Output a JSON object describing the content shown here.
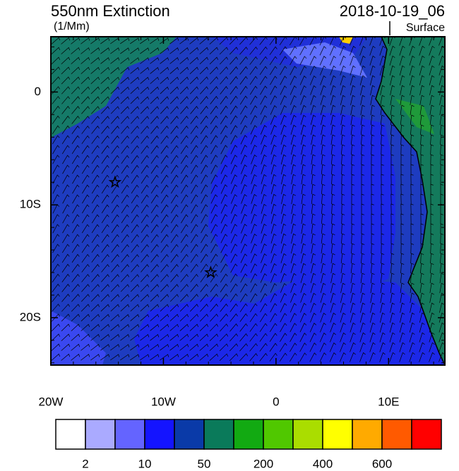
{
  "chart_data": {
    "type": "map",
    "title": "550nm Extinction",
    "units": "(1/Mm)",
    "date": "2018-10-19_06",
    "level": "Surface",
    "xlim": [
      -20,
      15
    ],
    "ylim": [
      -24.2,
      4.9
    ],
    "xticks": [
      {
        "value": -20,
        "label": "20W"
      },
      {
        "value": -10,
        "label": "10W"
      },
      0,
      {
        "value": 10,
        "label": "10E"
      }
    ],
    "yticks": [
      {
        "value": -20,
        "label": "20S"
      },
      {
        "value": -10,
        "label": "10S"
      },
      0
    ],
    "markers": {
      "lon": [
        -14.3,
        -5.8
      ],
      "lat": [
        -8,
        -16
      ]
    },
    "colorbar": {
      "colors": [
        "#ffffff",
        "#aaaaff",
        "#6464ff",
        "#1414ff",
        "#0a3aa8",
        "#0a7a5a",
        "#12aa12",
        "#50c800",
        "#aadd00",
        "#ffff00",
        "#ffaa00",
        "#ff5a00",
        "#ff0000"
      ],
      "ticks": [
        2,
        10,
        50,
        200,
        400,
        600
      ]
    }
  }
}
